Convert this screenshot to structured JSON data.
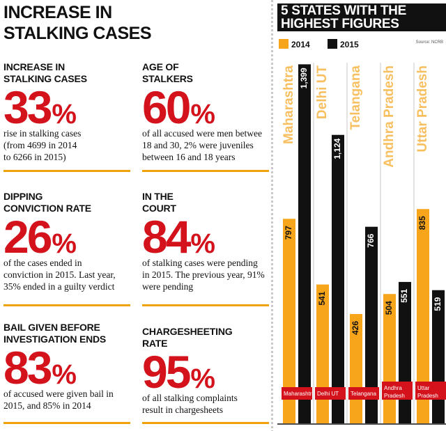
{
  "title": "INCREASE IN STALKING CASES",
  "stats": [
    {
      "heading_1": "INCREASE IN",
      "heading_2": "STALKING CASES",
      "value": "33",
      "unit": "%",
      "desc": [
        "rise in stalking cases",
        "(from 4699 in 2014",
        "to 6266 in 2015)"
      ]
    },
    {
      "heading_1": "AGE OF",
      "heading_2": "STALKERS",
      "value": "60",
      "unit": "%",
      "desc": [
        "of all accused were men betwee",
        "18 and 30, 2% were juveniles",
        "between 16 and 18 years"
      ]
    },
    {
      "heading_1": "DIPPING",
      "heading_2": "CONVICTION RATE",
      "value": "26",
      "unit": "%",
      "desc": [
        "of the cases ended in",
        "conviction in 2015. Last year,",
        "35% ended in a guilty verdict"
      ]
    },
    {
      "heading_1": "IN THE",
      "heading_2": "COURT",
      "value": "84",
      "unit": "%",
      "desc": [
        "of stalking cases were pending",
        "in 2015. The previous year, 91%",
        "were pending"
      ]
    },
    {
      "heading_1": "BAIL GIVEN BEFORE",
      "heading_2": "INVESTIGATION ENDS",
      "value": "83",
      "unit": "%",
      "desc": [
        "of accused were given bail in",
        "2015, and 85% in 2014"
      ]
    },
    {
      "heading_1": "CHARGESHEETING",
      "heading_2": "RATE",
      "value": "95",
      "unit": "%",
      "desc": [
        "of all stalking complaints",
        "result in chargesheets"
      ]
    }
  ],
  "colors": {
    "accent_red": "#d3121c",
    "orange": "#f7a51b",
    "black": "#111111",
    "divider": "#f0a20b"
  },
  "chart_data": {
    "type": "bar",
    "title_line_1": "5 STATES WITH THE",
    "title_line_2": "HIGHEST FIGURES",
    "source": "Source: NCRB",
    "categories": [
      "Maharashtra",
      "Delhi UT",
      "Telangana",
      "Andhra Pradesh",
      "Uttar Pradesh"
    ],
    "category_labels": [
      [
        "Maharashtra"
      ],
      [
        "Delhi UT"
      ],
      [
        "Telangana"
      ],
      [
        "Andhra",
        "Pradesh"
      ],
      [
        "Uttar",
        "Pradesh"
      ]
    ],
    "series": [
      {
        "name": "2014",
        "color": "#f7a51b",
        "values": [
          797,
          541,
          426,
          504,
          835
        ]
      },
      {
        "name": "2015",
        "color": "#111111",
        "values": [
          1399,
          1124,
          766,
          551,
          519
        ]
      }
    ],
    "value_labels": {
      "2014": [
        "797",
        "541",
        "426",
        "504",
        "835"
      ],
      "2015": [
        "1,399",
        "1,124",
        "766",
        "551",
        "519"
      ]
    },
    "legend_position": "top-left"
  }
}
